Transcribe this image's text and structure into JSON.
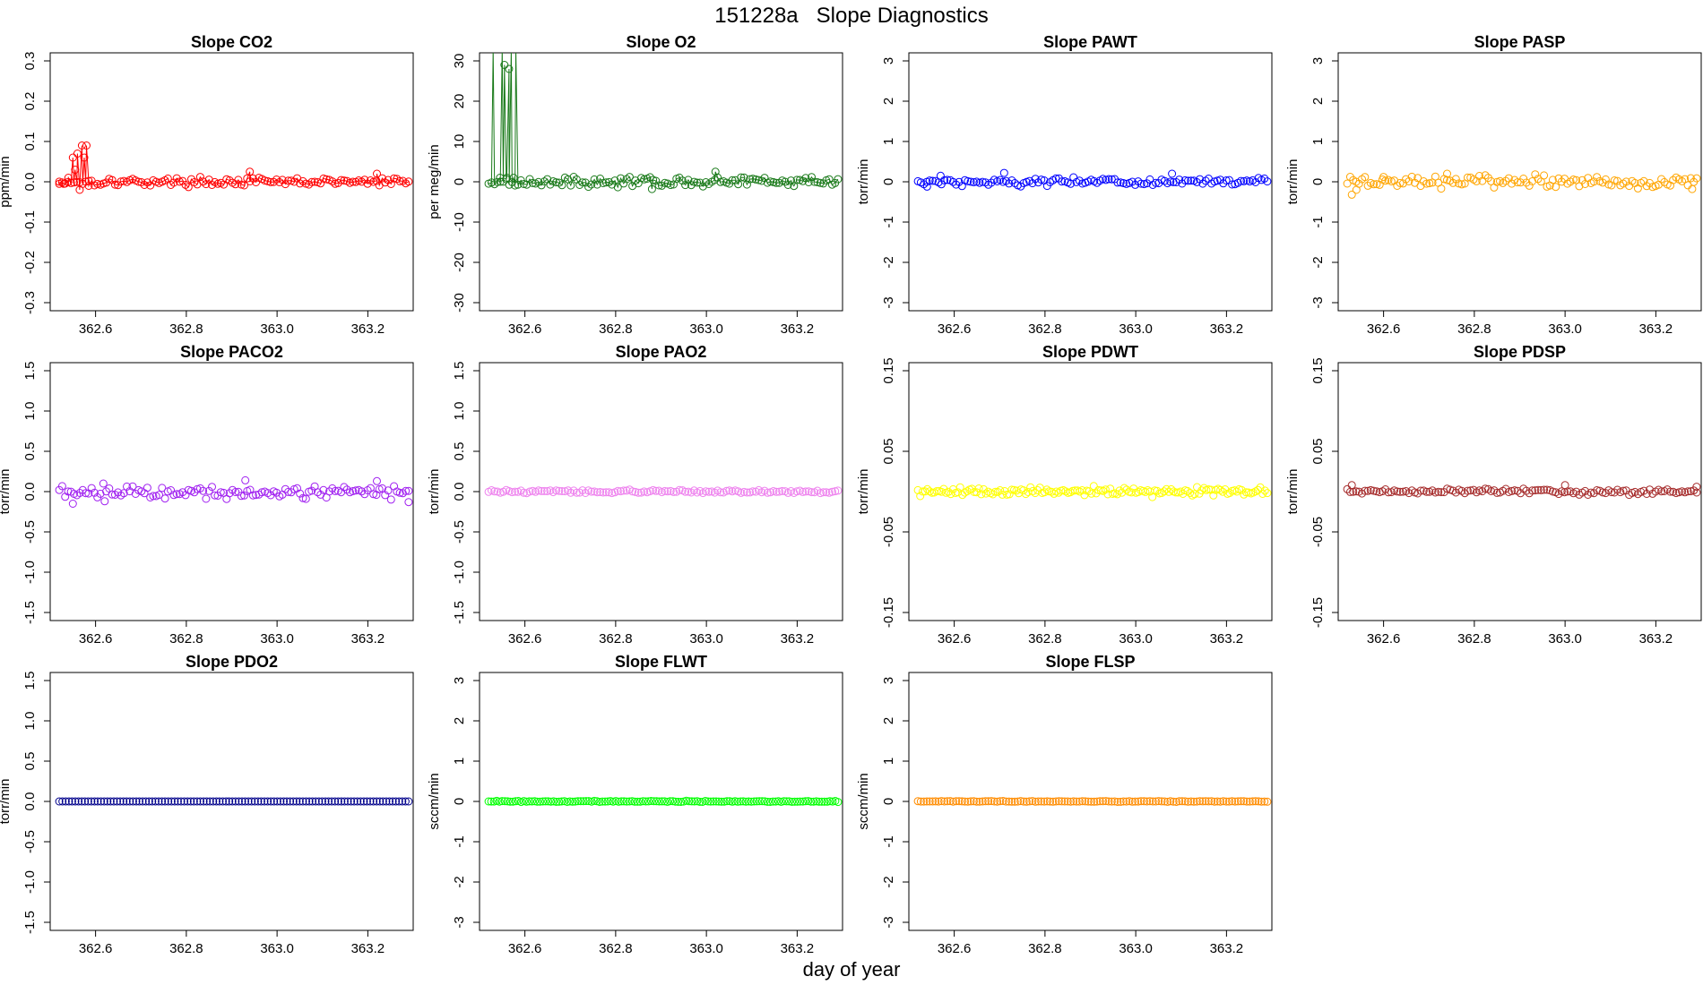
{
  "page": {
    "title": "151228a   Slope Diagnostics",
    "xlabel": "day of year"
  },
  "chart_data": [
    {
      "type": "scatter",
      "title": "Slope CO2",
      "ylabel": "ppm/min",
      "xlim": [
        362.5,
        363.3
      ],
      "ylim": [
        -0.32,
        0.32
      ],
      "xticks": [
        "362.6",
        "362.8",
        "363.0",
        "363.2"
      ],
      "xtick_values": [
        362.6,
        362.8,
        363.0,
        363.2
      ],
      "yticks": [
        "-0.3",
        "-0.2",
        "-0.1",
        "0.0",
        "0.1",
        "0.2",
        "0.3"
      ],
      "ytick_values": [
        -0.3,
        -0.2,
        -0.1,
        0.0,
        0.1,
        0.2,
        0.3
      ],
      "color": "#ff0000",
      "connected": true,
      "x_range": [
        362.52,
        363.29
      ],
      "n_points": 120,
      "noise": 0.006,
      "spikes": [
        [
          362.52,
          -0.005
        ],
        [
          362.53,
          -0.005
        ],
        [
          362.54,
          0.01
        ],
        [
          362.55,
          0.06
        ],
        [
          362.555,
          0.03
        ],
        [
          362.56,
          0.07
        ],
        [
          362.565,
          -0.02
        ],
        [
          362.57,
          0.09
        ],
        [
          362.575,
          0.06
        ],
        [
          362.58,
          0.09
        ],
        [
          362.585,
          -0.01
        ],
        [
          362.94,
          0.025
        ],
        [
          363.22,
          0.02
        ]
      ]
    },
    {
      "type": "scatter",
      "title": "Slope O2",
      "ylabel": "per meg/min",
      "xlim": [
        362.5,
        363.3
      ],
      "ylim": [
        -32,
        32
      ],
      "xticks": [
        "362.6",
        "362.8",
        "363.0",
        "363.2"
      ],
      "xtick_values": [
        362.6,
        362.8,
        363.0,
        363.2
      ],
      "yticks": [
        "-30",
        "-20",
        "-10",
        "0",
        "10",
        "20",
        "30"
      ],
      "ytick_values": [
        -30,
        -20,
        -10,
        0,
        10,
        20,
        30
      ],
      "color": "#1a7a1a",
      "connected": true,
      "x_range": [
        362.52,
        363.29
      ],
      "n_points": 120,
      "noise": 0.7,
      "spikes": [
        [
          362.53,
          33
        ],
        [
          362.545,
          1
        ],
        [
          362.55,
          33
        ],
        [
          362.555,
          29
        ],
        [
          362.56,
          1
        ],
        [
          362.565,
          28
        ],
        [
          362.57,
          33
        ],
        [
          362.575,
          1
        ],
        [
          362.58,
          33
        ],
        [
          363.02,
          2.5
        ],
        [
          362.88,
          -1.8
        ]
      ]
    },
    {
      "type": "scatter",
      "title": "Slope PAWT",
      "ylabel": "torr/min",
      "xlim": [
        362.5,
        363.3
      ],
      "ylim": [
        -3.2,
        3.2
      ],
      "xticks": [
        "362.6",
        "362.8",
        "363.0",
        "363.2"
      ],
      "xtick_values": [
        362.6,
        362.8,
        363.0,
        363.2
      ],
      "yticks": [
        "-3",
        "-2",
        "-1",
        "0",
        "1",
        "2",
        "3"
      ],
      "ytick_values": [
        -3,
        -2,
        -1,
        0,
        1,
        2,
        3
      ],
      "color": "#0000ff",
      "connected": false,
      "x_range": [
        362.52,
        363.29
      ],
      "n_points": 120,
      "noise": 0.06,
      "spikes": [
        [
          362.71,
          0.22
        ],
        [
          363.08,
          0.2
        ],
        [
          362.57,
          0.15
        ],
        [
          362.54,
          -0.12
        ]
      ]
    },
    {
      "type": "scatter",
      "title": "Slope PASP",
      "ylabel": "torr/min",
      "xlim": [
        362.5,
        363.3
      ],
      "ylim": [
        -3.2,
        3.2
      ],
      "xticks": [
        "362.6",
        "362.8",
        "363.0",
        "363.2"
      ],
      "xtick_values": [
        362.6,
        362.8,
        363.0,
        363.2
      ],
      "yticks": [
        "-3",
        "-2",
        "-1",
        "0",
        "1",
        "2",
        "3"
      ],
      "ytick_values": [
        -3,
        -2,
        -1,
        0,
        1,
        2,
        3
      ],
      "color": "#ffa500",
      "connected": false,
      "x_range": [
        362.52,
        363.29
      ],
      "n_points": 120,
      "noise": 0.09,
      "spikes": [
        [
          362.53,
          -0.32
        ],
        [
          362.54,
          -0.2
        ],
        [
          362.74,
          0.2
        ],
        [
          362.6,
          0.12
        ],
        [
          363.28,
          -0.18
        ]
      ]
    },
    {
      "type": "scatter",
      "title": "Slope PACO2",
      "ylabel": "torr/min",
      "xlim": [
        362.5,
        363.3
      ],
      "ylim": [
        -1.6,
        1.6
      ],
      "xticks": [
        "362.6",
        "362.8",
        "363.0",
        "363.2"
      ],
      "xtick_values": [
        362.6,
        362.8,
        363.0,
        363.2
      ],
      "yticks": [
        "-1.5",
        "-1.0",
        "-0.5",
        "0.0",
        "0.5",
        "1.0",
        "1.5"
      ],
      "ytick_values": [
        -1.5,
        -1.0,
        -0.5,
        0.0,
        0.5,
        1.0,
        1.5
      ],
      "color": "#a020f0",
      "connected": false,
      "x_range": [
        362.52,
        363.29
      ],
      "n_points": 120,
      "noise": 0.05,
      "spikes": [
        [
          362.55,
          -0.15
        ],
        [
          362.62,
          -0.12
        ],
        [
          362.93,
          0.14
        ],
        [
          363.22,
          0.13
        ],
        [
          363.29,
          -0.13
        ]
      ]
    },
    {
      "type": "scatter",
      "title": "Slope PAO2",
      "ylabel": "torr/min",
      "xlim": [
        362.5,
        363.3
      ],
      "ylim": [
        -1.6,
        1.6
      ],
      "xticks": [
        "362.6",
        "362.8",
        "363.0",
        "363.2"
      ],
      "xtick_values": [
        362.6,
        362.8,
        363.0,
        363.2
      ],
      "yticks": [
        "-1.5",
        "-1.0",
        "-0.5",
        "0.0",
        "0.5",
        "1.0",
        "1.5"
      ],
      "ytick_values": [
        -1.5,
        -1.0,
        -0.5,
        0.0,
        0.5,
        1.0,
        1.5
      ],
      "color": "#ee82ee",
      "connected": false,
      "x_range": [
        362.52,
        363.29
      ],
      "n_points": 120,
      "noise": 0.012,
      "spikes": []
    },
    {
      "type": "scatter",
      "title": "Slope PDWT",
      "ylabel": "torr/min",
      "xlim": [
        362.5,
        363.3
      ],
      "ylim": [
        -0.16,
        0.16
      ],
      "xticks": [
        "362.6",
        "362.8",
        "363.0",
        "363.2"
      ],
      "xtick_values": [
        362.6,
        362.8,
        363.0,
        363.2
      ],
      "yticks": [
        "-0.15",
        "-0.05",
        "0.05",
        "0.15"
      ],
      "ytick_values": [
        -0.15,
        -0.05,
        0.05,
        0.15
      ],
      "color": "#ffff00",
      "connected": false,
      "x_range": [
        362.52,
        363.29
      ],
      "n_points": 150,
      "noise": 0.003,
      "spikes": []
    },
    {
      "type": "scatter",
      "title": "Slope PDSP",
      "ylabel": "torr/min",
      "xlim": [
        362.5,
        363.3
      ],
      "ylim": [
        -0.16,
        0.16
      ],
      "xticks": [
        "362.6",
        "362.8",
        "363.0",
        "363.2"
      ],
      "xtick_values": [
        362.6,
        362.8,
        363.0,
        363.2
      ],
      "yticks": [
        "-0.15",
        "-0.05",
        "0.05",
        "0.15"
      ],
      "ytick_values": [
        -0.15,
        -0.05,
        0.05,
        0.15
      ],
      "color": "#a52a2a",
      "connected": false,
      "x_range": [
        362.52,
        363.29
      ],
      "n_points": 120,
      "noise": 0.002,
      "spikes": [
        [
          362.53,
          0.008
        ],
        [
          363.0,
          0.008
        ],
        [
          363.29,
          0.006
        ]
      ]
    },
    {
      "type": "scatter",
      "title": "Slope PDO2",
      "ylabel": "torr/min",
      "xlim": [
        362.5,
        363.3
      ],
      "ylim": [
        -1.6,
        1.6
      ],
      "xticks": [
        "362.6",
        "362.8",
        "363.0",
        "363.2"
      ],
      "xtick_values": [
        362.6,
        362.8,
        363.0,
        363.2
      ],
      "yticks": [
        "-1.5",
        "-1.0",
        "-0.5",
        "0.0",
        "0.5",
        "1.0",
        "1.5"
      ],
      "ytick_values": [
        -1.5,
        -1.0,
        -0.5,
        0.0,
        0.5,
        1.0,
        1.5
      ],
      "color": "#00008b",
      "connected": false,
      "x_range": [
        362.52,
        363.29
      ],
      "n_points": 110,
      "noise": 0.0,
      "spikes": []
    },
    {
      "type": "scatter",
      "title": "Slope FLWT",
      "ylabel": "sccm/min",
      "xlim": [
        362.5,
        363.3
      ],
      "ylim": [
        -3.2,
        3.2
      ],
      "xticks": [
        "362.6",
        "362.8",
        "363.0",
        "363.2"
      ],
      "xtick_values": [
        362.6,
        362.8,
        363.0,
        363.2
      ],
      "yticks": [
        "-3",
        "-2",
        "-1",
        "0",
        "1",
        "2",
        "3"
      ],
      "ytick_values": [
        -3,
        -2,
        -1,
        0,
        1,
        2,
        3
      ],
      "color": "#00ff00",
      "connected": false,
      "x_range": [
        362.52,
        363.29
      ],
      "n_points": 130,
      "noise": 0.008,
      "spikes": []
    },
    {
      "type": "scatter",
      "title": "Slope FLSP",
      "ylabel": "sccm/min",
      "xlim": [
        362.5,
        363.3
      ],
      "ylim": [
        -3.2,
        3.2
      ],
      "xticks": [
        "362.6",
        "362.8",
        "363.0",
        "363.2"
      ],
      "xtick_values": [
        362.6,
        362.8,
        363.0,
        363.2
      ],
      "yticks": [
        "-3",
        "-2",
        "-1",
        "0",
        "1",
        "2",
        "3"
      ],
      "ytick_values": [
        -3,
        -2,
        -1,
        0,
        1,
        2,
        3
      ],
      "color": "#ff8c00",
      "connected": false,
      "x_range": [
        362.52,
        363.29
      ],
      "n_points": 120,
      "noise": 0.006,
      "spikes": []
    }
  ]
}
